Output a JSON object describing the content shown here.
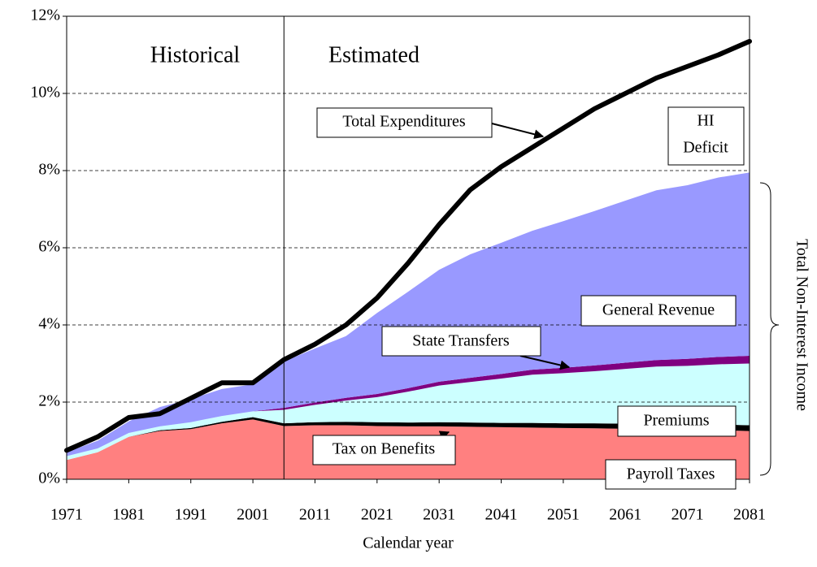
{
  "chart_data": {
    "type": "area",
    "x_label": "Calendar year",
    "x": [
      1971,
      1976,
      1981,
      1986,
      1991,
      1996,
      2001,
      2006,
      2011,
      2016,
      2021,
      2026,
      2031,
      2036,
      2041,
      2046,
      2051,
      2056,
      2061,
      2066,
      2071,
      2076,
      2081
    ],
    "series": [
      {
        "name": "Payroll Taxes",
        "color": "#ff8080",
        "values": [
          0.5,
          0.7,
          1.1,
          1.25,
          1.3,
          1.45,
          1.55,
          1.38,
          1.4,
          1.4,
          1.38,
          1.37,
          1.37,
          1.36,
          1.35,
          1.34,
          1.33,
          1.32,
          1.31,
          1.3,
          1.28,
          1.27,
          1.25
        ]
      },
      {
        "name": "Tax on Benefits",
        "color": "#000000",
        "values": [
          0,
          0,
          0,
          0.02,
          0.03,
          0.04,
          0.06,
          0.07,
          0.08,
          0.09,
          0.1,
          0.1,
          0.11,
          0.11,
          0.11,
          0.12,
          0.12,
          0.13,
          0.13,
          0.14,
          0.14,
          0.15,
          0.15
        ]
      },
      {
        "name": "Premiums",
        "color": "#ccffff",
        "values": [
          0.1,
          0.1,
          0.1,
          0.1,
          0.15,
          0.15,
          0.15,
          0.35,
          0.45,
          0.55,
          0.65,
          0.8,
          0.95,
          1.05,
          1.15,
          1.25,
          1.3,
          1.35,
          1.42,
          1.48,
          1.52,
          1.56,
          1.6
        ]
      },
      {
        "name": "State Transfers",
        "color": "#800080",
        "values": [
          0,
          0,
          0,
          0,
          0,
          0,
          0,
          0.05,
          0.06,
          0.07,
          0.08,
          0.09,
          0.1,
          0.11,
          0.12,
          0.13,
          0.14,
          0.15,
          0.16,
          0.17,
          0.18,
          0.19,
          0.2
        ]
      },
      {
        "name": "General Revenue",
        "color": "#9999ff",
        "values": [
          0.1,
          0.2,
          0.3,
          0.5,
          0.6,
          0.7,
          0.7,
          1.2,
          1.4,
          1.6,
          2.1,
          2.5,
          2.9,
          3.2,
          3.4,
          3.6,
          3.8,
          4.0,
          4.2,
          4.4,
          4.5,
          4.65,
          4.75
        ]
      },
      {
        "name": "Total Expenditures",
        "color": "#000000",
        "line": true,
        "values": [
          0.75,
          1.1,
          1.6,
          1.7,
          2.1,
          2.5,
          2.5,
          3.1,
          3.5,
          4.0,
          4.7,
          5.6,
          6.6,
          7.5,
          8.1,
          8.6,
          9.1,
          9.6,
          10.0,
          10.4,
          10.7,
          11.0,
          11.35
        ]
      }
    ],
    "xlim": [
      1971,
      2081
    ],
    "xticks": [
      1971,
      1981,
      1991,
      2001,
      2011,
      2021,
      2031,
      2041,
      2051,
      2061,
      2071,
      2081
    ],
    "ylim": [
      0,
      12
    ],
    "yticks": [
      {
        "value": 0,
        "label": "0%"
      },
      {
        "value": 2,
        "label": "2%"
      },
      {
        "value": 4,
        "label": "4%"
      },
      {
        "value": 6,
        "label": "6%"
      },
      {
        "value": 8,
        "label": "8%"
      },
      {
        "value": 10,
        "label": "10%"
      },
      {
        "value": 12,
        "label": "12%"
      }
    ],
    "grid": true,
    "divider_x": 2006,
    "period_labels": [
      "Historical",
      "Estimated"
    ],
    "deficit_label": [
      "HI",
      "Deficit"
    ],
    "bracket_label": "Total Non-Interest Income"
  }
}
